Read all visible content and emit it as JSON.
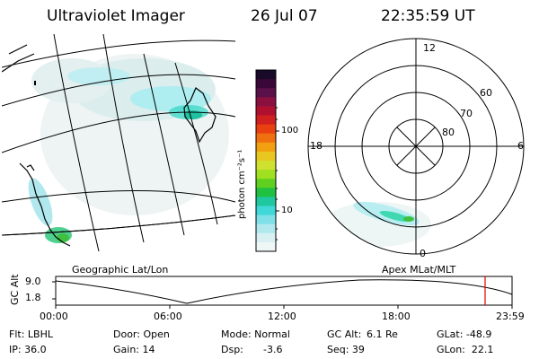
{
  "header": {
    "instrument": "Ultraviolet Imager",
    "date": "26 Jul 07",
    "time": "22:35:59 UT"
  },
  "map_labels": {
    "left": "Geographic Lat/Lon",
    "right": "Apex MLat/MLT"
  },
  "colorbar": {
    "unit_label": "photon cm⁻²s⁻¹",
    "ticks": [
      "100",
      "10"
    ],
    "colors": [
      "#1a0a2a",
      "#3a0838",
      "#5a1048",
      "#8a1040",
      "#b01030",
      "#d02020",
      "#e84010",
      "#f07010",
      "#f0a010",
      "#e8c820",
      "#d0e030",
      "#a0e020",
      "#60d020",
      "#20c040",
      "#20c8a0",
      "#40d8d8",
      "#80e0e8",
      "#b0e8ee",
      "#d8f0f2",
      "#eef6f6"
    ]
  },
  "polar": {
    "mlt_labels": [
      "12",
      "18",
      "6",
      "0"
    ],
    "lat_labels": [
      "60",
      "70",
      "80"
    ]
  },
  "timeline": {
    "y_axis_label": "GC Alt",
    "y_ticks": [
      "9.0",
      "1.8"
    ],
    "x_ticks": [
      "00:00",
      "06:00",
      "12:00",
      "18:00",
      "23:59"
    ],
    "marker_color": "#e00000"
  },
  "status": {
    "flt": "Flt: LBHL",
    "ip": "IP: 36.0",
    "door": "Door: Open",
    "gain": "Gain: 14",
    "mode": "Mode: Normal",
    "dsp_label": "Dsp:",
    "dsp_value": "-3.6",
    "gcalt_label": "GC Alt:",
    "gcalt_value": "6.1 Re",
    "seq": "Seq: 39",
    "glat": "GLat: -48.9",
    "glon": "GLon:  22.1"
  }
}
